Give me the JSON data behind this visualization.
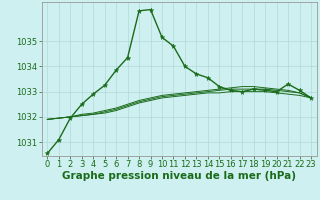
{
  "background_color": "#cff0f0",
  "grid_color": "#b0d8d8",
  "line_color": "#1a6b1a",
  "title": "Graphe pression niveau de la mer (hPa)",
  "title_fontsize": 7.5,
  "tick_fontsize": 6.0,
  "xlim": [
    -0.5,
    23.5
  ],
  "ylim": [
    1030.45,
    1036.55
  ],
  "yticks": [
    1031,
    1032,
    1033,
    1034,
    1035
  ],
  "xticks": [
    0,
    1,
    2,
    3,
    4,
    5,
    6,
    7,
    8,
    9,
    10,
    11,
    12,
    13,
    14,
    15,
    16,
    17,
    18,
    19,
    20,
    21,
    22,
    23
  ],
  "series": [
    {
      "values": [
        1030.55,
        1031.1,
        1031.95,
        1032.5,
        1032.9,
        1033.25,
        1033.85,
        1034.35,
        1036.2,
        1036.25,
        1035.15,
        1034.8,
        1034.0,
        1033.7,
        1033.55,
        1033.2,
        1033.05,
        1033.0,
        1033.1,
        1033.05,
        1033.0,
        1033.3,
        1033.05,
        1032.75
      ],
      "marker": true,
      "linewidth": 1.0
    },
    {
      "values": [
        1031.9,
        1031.95,
        1032.0,
        1032.05,
        1032.1,
        1032.15,
        1032.25,
        1032.4,
        1032.55,
        1032.65,
        1032.75,
        1032.8,
        1032.85,
        1032.9,
        1032.95,
        1032.95,
        1033.0,
        1033.0,
        1033.0,
        1033.0,
        1032.95,
        1032.9,
        1032.85,
        1032.75
      ],
      "marker": false,
      "linewidth": 0.7
    },
    {
      "values": [
        1031.9,
        1031.95,
        1032.0,
        1032.05,
        1032.1,
        1032.2,
        1032.3,
        1032.45,
        1032.6,
        1032.7,
        1032.8,
        1032.85,
        1032.9,
        1032.95,
        1033.0,
        1033.05,
        1033.1,
        1033.1,
        1033.1,
        1033.1,
        1033.05,
        1033.0,
        1032.95,
        1032.75
      ],
      "marker": false,
      "linewidth": 0.7
    },
    {
      "values": [
        1031.9,
        1031.95,
        1032.0,
        1032.1,
        1032.15,
        1032.25,
        1032.35,
        1032.5,
        1032.65,
        1032.75,
        1032.85,
        1032.9,
        1032.95,
        1033.0,
        1033.05,
        1033.1,
        1033.15,
        1033.2,
        1033.2,
        1033.15,
        1033.1,
        1033.05,
        1032.95,
        1032.75
      ],
      "marker": false,
      "linewidth": 0.7
    }
  ]
}
